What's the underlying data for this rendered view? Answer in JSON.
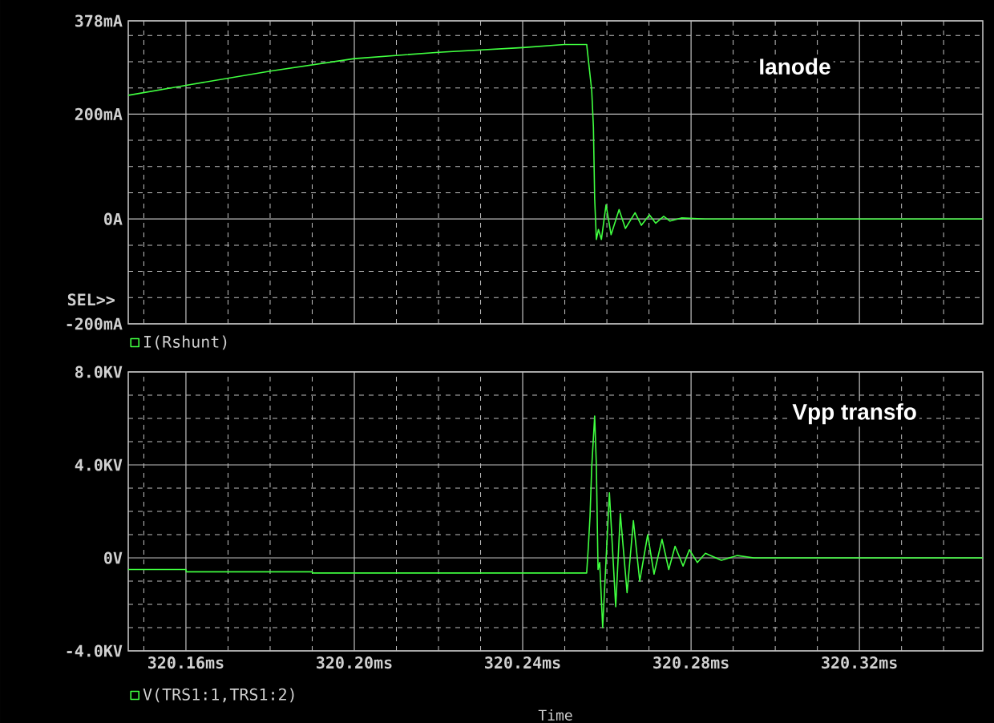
{
  "chart_data": [
    {
      "type": "line",
      "annotations": [
        "Ianode",
        "SEL>>"
      ],
      "tick_labels": "y",
      "grid": true,
      "legend": "bottom left",
      "x": [
        320.1463,
        320.16,
        320.18,
        320.2,
        320.22,
        320.24,
        320.2499,
        320.2552,
        320.2564,
        320.2568,
        320.2571,
        320.2575,
        320.258,
        320.2587,
        320.2598,
        320.261,
        320.2629,
        320.2644,
        320.2667,
        320.2682,
        320.2701,
        320.2716,
        320.2735,
        320.275,
        320.2777,
        320.2834,
        320.3493
      ],
      "series": [
        {
          "name": "I(Rshunt)",
          "color": "#40ff40",
          "values": [
            236,
            255,
            282,
            306,
            318,
            327,
            333,
            333,
            245,
            176,
            39,
            -39,
            -20,
            -39,
            27,
            -30,
            18,
            -18,
            12,
            -12,
            8,
            -8,
            5,
            -4,
            2,
            0,
            0
          ]
        }
      ],
      "xlim": [
        320.1463,
        320.3493
      ],
      "xticks": [
        {
          "value": 320.16,
          "label": null
        },
        {
          "value": 320.2,
          "label": null
        },
        {
          "value": 320.24,
          "label": null
        },
        {
          "value": 320.28,
          "label": null
        },
        {
          "value": 320.32,
          "label": null
        }
      ],
      "ylim": [
        -200,
        378
      ],
      "yticks": [
        {
          "value": -200,
          "label": "-200mA"
        },
        {
          "value": 0,
          "label": "0A"
        },
        {
          "value": 200,
          "label": "200mA"
        },
        {
          "value": 378,
          "label": "378mA"
        }
      ]
    },
    {
      "type": "line",
      "annotations": [
        "Vpp transfo"
      ],
      "xlabel": "Time",
      "grid": true,
      "legend": "bottom left",
      "x": [
        320.1463,
        320.16,
        320.1601,
        320.19,
        320.1901,
        320.2552,
        320.2556,
        320.256,
        320.2564,
        320.2571,
        320.2575,
        320.2579,
        320.2583,
        320.259,
        320.2606,
        320.2621,
        320.2632,
        320.2648,
        320.2663,
        320.2678,
        320.2697,
        320.2712,
        320.2731,
        320.2747,
        320.2762,
        320.2781,
        320.2796,
        320.2815,
        320.2834,
        320.2872,
        320.291,
        320.2949,
        320.3082,
        320.3493
      ],
      "series": [
        {
          "name": "V(TRS1:1,TRS1:2)",
          "color": "#40ff40",
          "values": [
            -0.5,
            -0.5,
            -0.6,
            -0.6,
            -0.65,
            -0.65,
            0.5,
            1.8,
            3.9,
            6.1,
            4.0,
            -0.5,
            -0.2,
            -3.0,
            2.8,
            -2.1,
            1.9,
            -1.5,
            1.6,
            -1.0,
            1.0,
            -0.7,
            0.8,
            -0.5,
            0.5,
            -0.35,
            0.35,
            -0.2,
            0.2,
            -0.1,
            0.1,
            0,
            0,
            0
          ]
        }
      ],
      "xlim": [
        320.1463,
        320.3493
      ],
      "xticks": [
        {
          "value": 320.16,
          "label": "320.16ms"
        },
        {
          "value": 320.2,
          "label": "320.20ms"
        },
        {
          "value": 320.24,
          "label": "320.24ms"
        },
        {
          "value": 320.28,
          "label": "320.28ms"
        },
        {
          "value": 320.32,
          "label": "320.32ms"
        }
      ],
      "ylim": [
        -4,
        8
      ],
      "yticks": [
        {
          "value": -4,
          "label": "-4.0KV"
        },
        {
          "value": 0,
          "label": "0V"
        },
        {
          "value": 4,
          "label": "4.0KV"
        },
        {
          "value": 8,
          "label": "8.0KV"
        }
      ]
    }
  ]
}
